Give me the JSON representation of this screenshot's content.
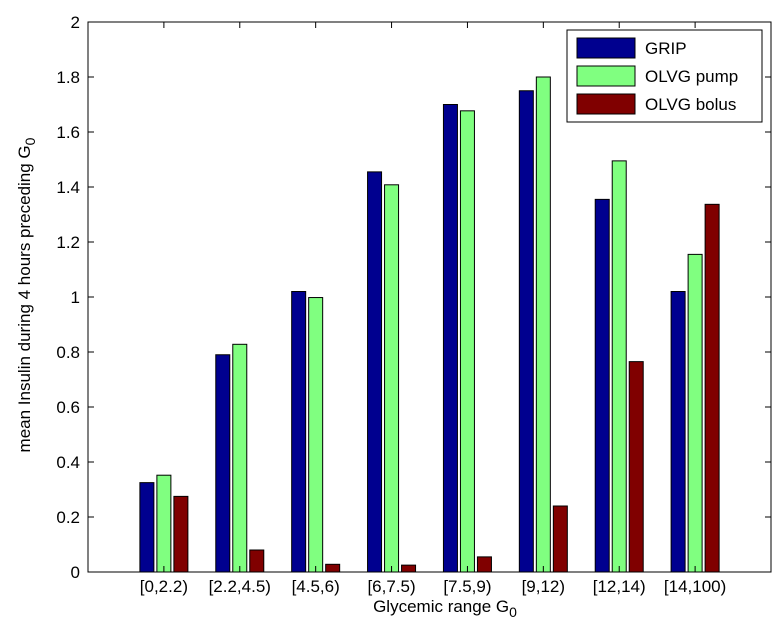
{
  "chart_data": {
    "type": "bar",
    "title": "",
    "xlabel": "Glycemic range G",
    "xlabel_sub": "0",
    "ylabel": "mean Insulin during 4 hours preceding G",
    "ylabel_sub": "0",
    "categories": [
      "[0,2.2)",
      "[2.2,4.5)",
      "[4.5,6)",
      "[6,7.5)",
      "[7.5,9)",
      "[9,12)",
      "[12,14)",
      "[14,100)"
    ],
    "ylim": [
      0,
      2
    ],
    "yticks": [
      "0",
      "0.2",
      "0.4",
      "0.6",
      "0.8",
      "1",
      "1.2",
      "1.4",
      "1.6",
      "1.8",
      "2"
    ],
    "grid": false,
    "legend_position": "top-right",
    "series": [
      {
        "name": "GRIP",
        "color": "#00008f",
        "values": [
          0.325,
          0.79,
          1.02,
          1.455,
          1.7,
          1.75,
          1.355,
          1.02
        ]
      },
      {
        "name": "OLVG pump",
        "color": "#80ff80",
        "values": [
          0.352,
          0.828,
          0.998,
          1.408,
          1.677,
          1.8,
          1.495,
          1.155
        ]
      },
      {
        "name": "OLVG bolus",
        "color": "#800000",
        "values": [
          0.275,
          0.08,
          0.028,
          0.025,
          0.055,
          0.24,
          0.765,
          1.337
        ]
      }
    ]
  }
}
